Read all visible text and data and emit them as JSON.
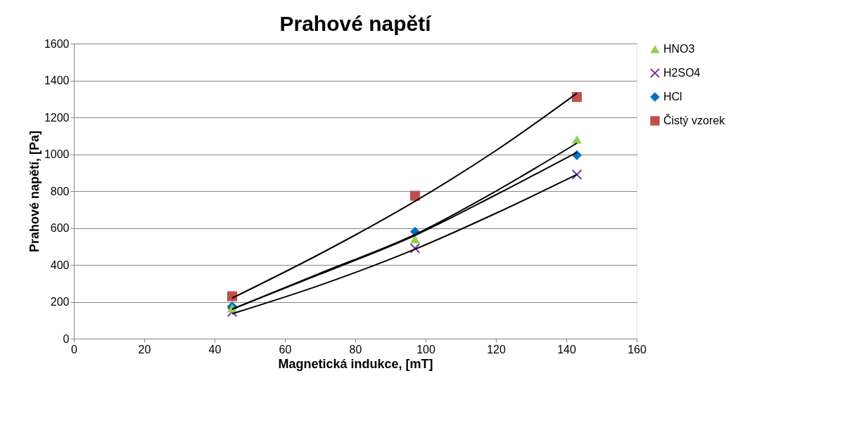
{
  "chart_data": {
    "type": "scatter",
    "title": "Prahové napětí",
    "xlabel": "Magnetická indukce, [mT]",
    "ylabel": "Prahové napětí, [Pa]",
    "xlim": [
      0,
      160
    ],
    "xticks": [
      0,
      20,
      40,
      60,
      80,
      100,
      120,
      140,
      160
    ],
    "ylim": [
      0,
      1600
    ],
    "yticks": [
      0,
      200,
      400,
      600,
      800,
      1000,
      1200,
      1400,
      1600
    ],
    "grid": "y",
    "legend": "right",
    "series": [
      {
        "name": "HNO3",
        "color": "#92d050",
        "marker": "triangle",
        "x": [
          45,
          97,
          143
        ],
        "values": [
          165,
          540,
          1080
        ]
      },
      {
        "name": "H2SO4",
        "color": "#7030a0",
        "marker": "cross",
        "x": [
          45,
          97,
          143
        ],
        "values": [
          145,
          490,
          890
        ]
      },
      {
        "name": "HCl",
        "color": "#0070c0",
        "marker": "diamond",
        "x": [
          45,
          97,
          143
        ],
        "values": [
          175,
          580,
          995
        ]
      },
      {
        "name": "Čistý vzorek",
        "color": "#c0504d",
        "marker": "square",
        "x": [
          45,
          97,
          143
        ],
        "values": [
          230,
          775,
          1310
        ]
      },
      {
        "type": "line",
        "color": "#000000",
        "x": [
          45,
          70,
          97,
          120,
          143
        ],
        "values": [
          160,
          355,
          565,
          800,
          1060
        ]
      },
      {
        "type": "line",
        "color": "#000000",
        "x": [
          45,
          70,
          97,
          120,
          143
        ],
        "values": [
          135,
          290,
          485,
          680,
          890
        ]
      },
      {
        "type": "line",
        "color": "#000000",
        "x": [
          45,
          70,
          97,
          120,
          143
        ],
        "values": [
          160,
          350,
          560,
          780,
          1010
        ]
      },
      {
        "type": "line",
        "color": "#000000",
        "x": [
          45,
          70,
          97,
          120,
          143
        ],
        "values": [
          220,
          460,
          745,
          1020,
          1330
        ]
      }
    ]
  }
}
